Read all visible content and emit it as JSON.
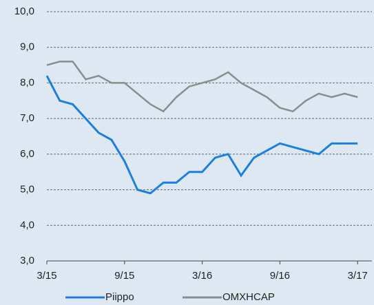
{
  "chart_data": {
    "type": "line",
    "x": [
      "3/15",
      "4/15",
      "5/15",
      "6/15",
      "7/15",
      "8/15",
      "9/15",
      "10/15",
      "11/15",
      "12/15",
      "1/16",
      "2/16",
      "3/16",
      "4/16",
      "5/16",
      "6/16",
      "7/16",
      "8/16",
      "9/16",
      "10/16",
      "11/16",
      "12/16",
      "1/17",
      "2/17",
      "3/17"
    ],
    "xticks": [
      "3/15",
      "9/15",
      "3/16",
      "9/16",
      "3/17"
    ],
    "series": [
      {
        "name": "Piippo",
        "color": "#1a7fe0",
        "values": [
          8.2,
          7.5,
          7.4,
          7.0,
          6.6,
          6.4,
          5.8,
          5.0,
          4.9,
          5.2,
          5.2,
          5.5,
          5.5,
          5.9,
          6.0,
          5.4,
          5.9,
          6.1,
          6.3,
          6.2,
          6.1,
          6.0,
          6.3,
          6.3,
          6.3
        ]
      },
      {
        "name": "OMXHCAP",
        "color": "#8c8c8c",
        "values": [
          8.5,
          8.6,
          8.6,
          8.1,
          8.2,
          8.0,
          8.0,
          7.7,
          7.4,
          7.2,
          7.6,
          7.9,
          8.0,
          8.1,
          8.3,
          8.0,
          7.8,
          7.6,
          7.3,
          7.2,
          7.5,
          7.7,
          7.6,
          7.7,
          7.6
        ]
      }
    ],
    "ylim": [
      3,
      10
    ],
    "yticks": [
      {
        "value": 3,
        "label": "3,0"
      },
      {
        "value": 4,
        "label": "4,0"
      },
      {
        "value": 5,
        "label": "5,0"
      },
      {
        "value": 6,
        "label": "6,0"
      },
      {
        "value": 7,
        "label": "7,0"
      },
      {
        "value": 8,
        "label": "8,0"
      },
      {
        "value": 9,
        "label": "9,0"
      },
      {
        "value": 10,
        "label": "10,0"
      }
    ],
    "grid": true,
    "legend": "bottom"
  }
}
